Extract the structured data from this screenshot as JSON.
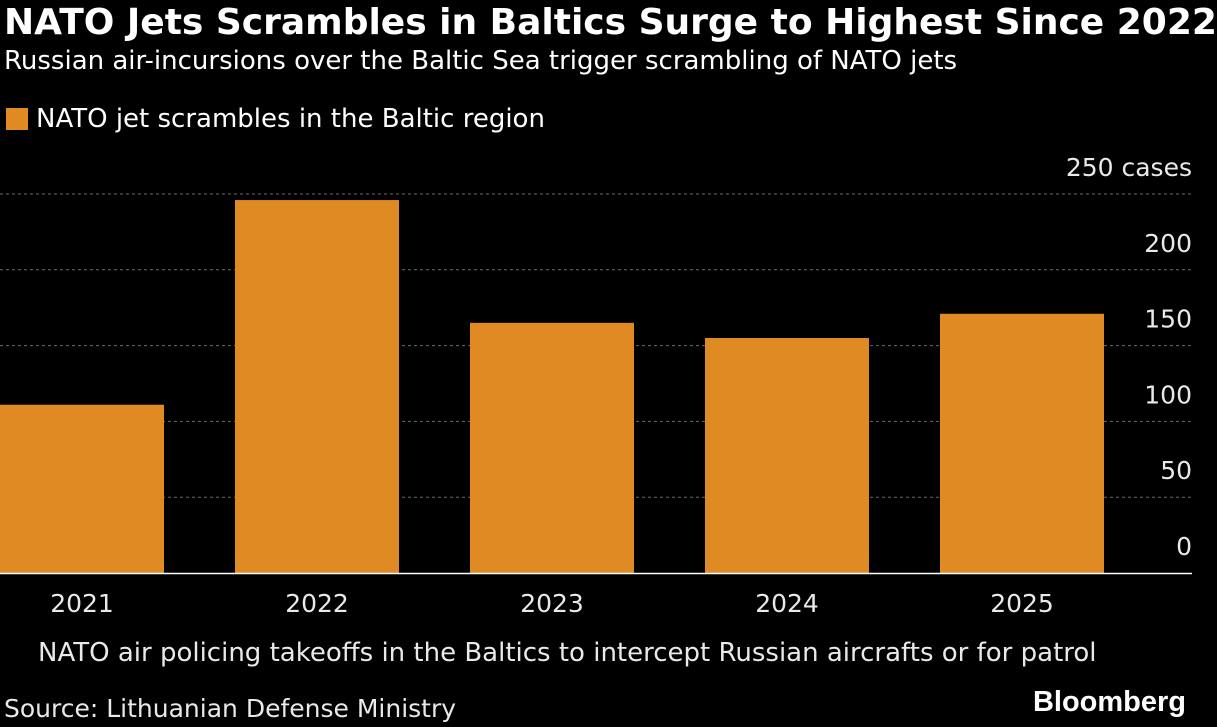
{
  "chart_data": {
    "type": "bar",
    "title": "NATO Jets Scrambles in Baltics Surge to Highest Since 2022",
    "subtitle": "Russian air-incursions over the Baltic Sea trigger scrambling of NATO jets",
    "legend": [
      {
        "name": "NATO jet scrambles in the Baltic region",
        "color": "#e08a24"
      }
    ],
    "categories": [
      "2021",
      "2022",
      "2023",
      "2024",
      "2025"
    ],
    "series": [
      {
        "name": "NATO jet scrambles in the Baltic region",
        "values": [
          111,
          246,
          165,
          155,
          171
        ]
      }
    ],
    "ylim": [
      0,
      250
    ],
    "yticks": [
      0,
      50,
      100,
      150,
      200,
      250
    ],
    "ytick_labels": [
      "0",
      "50",
      "100",
      "150",
      "200",
      "250 cases"
    ],
    "ylabel": "cases",
    "grid": true,
    "footnote": "NATO air policing takeoffs in the Baltics to intercept Russian aircrafts or for patrol",
    "source": "Source: Lithuanian Defense Ministry",
    "brand": "Bloomberg"
  },
  "colors": {
    "background": "#000000",
    "bar": "#e08a24",
    "grid": "#6a6a6a",
    "axis": "#ffffff"
  }
}
